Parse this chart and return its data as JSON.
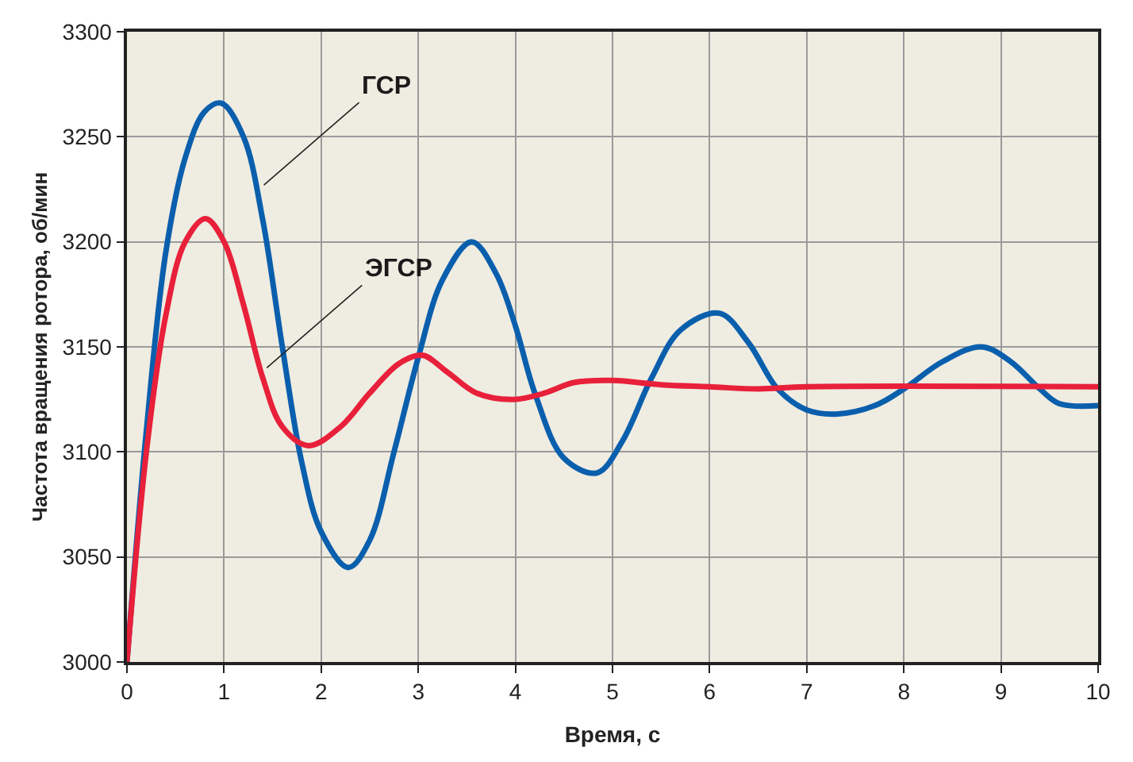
{
  "chart_data": {
    "type": "line",
    "xlabel": "Время, с",
    "ylabel": "Частота вращения ротора, об/мин",
    "xlim": [
      0,
      10
    ],
    "xticks": [
      0,
      1,
      2,
      3,
      4,
      5,
      6,
      7,
      8,
      9,
      10
    ],
    "ylim": [
      3000,
      3300
    ],
    "yticks": [
      3000,
      3050,
      3100,
      3150,
      3200,
      3250,
      3300
    ],
    "grid": true,
    "marker": "none",
    "line_style": "solid",
    "series": [
      {
        "color": "#0a5fad",
        "x": [
          0,
          0.2,
          0.4,
          0.6,
          0.8,
          0.97,
          1.2,
          1.4,
          1.6,
          1.8,
          2.0,
          2.28,
          2.5,
          2.75,
          3.0,
          3.25,
          3.55,
          3.8,
          4.0,
          4.2,
          4.5,
          4.84,
          5.1,
          5.4,
          5.7,
          6.1,
          6.4,
          6.7,
          7.0,
          7.3,
          7.7,
          8.0,
          8.4,
          8.8,
          9.1,
          9.4,
          9.6,
          10
        ],
        "values": [
          3000,
          3110,
          3195,
          3240,
          3262,
          3266,
          3250,
          3210,
          3150,
          3095,
          3062,
          3045,
          3058,
          3100,
          3145,
          3182,
          3200,
          3185,
          3160,
          3128,
          3097,
          3090,
          3105,
          3135,
          3158,
          3166,
          3152,
          3130,
          3120,
          3118,
          3122,
          3130,
          3143,
          3150,
          3143,
          3130,
          3123,
          3122
        ]
      },
      {
        "color": "#e8203a",
        "x": [
          0,
          0.2,
          0.4,
          0.6,
          0.81,
          1.0,
          1.2,
          1.4,
          1.6,
          1.87,
          2.2,
          2.5,
          2.8,
          3.04,
          3.3,
          3.6,
          3.99,
          4.3,
          4.6,
          5.0,
          5.5,
          6.0,
          6.5,
          7.0,
          10
        ],
        "values": [
          3000,
          3100,
          3165,
          3200,
          3211,
          3200,
          3170,
          3135,
          3112,
          3103,
          3112,
          3128,
          3142,
          3146,
          3138,
          3128,
          3125,
          3128,
          3133,
          3134,
          3132,
          3131,
          3130,
          3131,
          3131
        ]
      }
    ],
    "annotations": [
      {
        "text": "ГСР",
        "x": 1.41,
        "y": 3227
      },
      {
        "text": "ЭГСР",
        "x": 1.44,
        "y": 3140
      }
    ]
  }
}
